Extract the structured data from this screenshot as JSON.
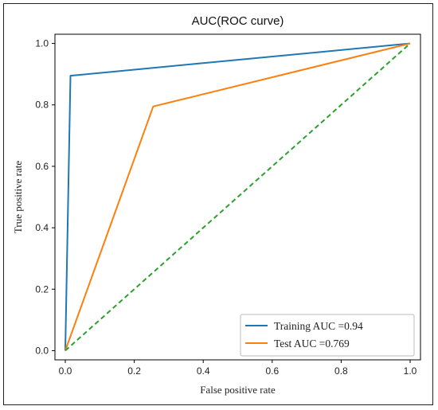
{
  "chart_data": {
    "type": "line",
    "title": "AUC(ROC curve)",
    "xlabel": "False positive rate",
    "ylabel": "True positive rate",
    "xlim": [
      -0.03,
      1.03
    ],
    "ylim": [
      -0.03,
      1.03
    ],
    "xticks": [
      0.0,
      0.2,
      0.4,
      0.6,
      0.8,
      1.0
    ],
    "yticks": [
      0.0,
      0.2,
      0.4,
      0.6,
      0.8,
      1.0
    ],
    "xtick_labels": [
      "0.0",
      "0.2",
      "0.4",
      "0.6",
      "0.8",
      "1.0"
    ],
    "ytick_labels": [
      "0.0",
      "0.2",
      "0.4",
      "0.6",
      "0.8",
      "1.0"
    ],
    "grid": false,
    "legend_position": "bottom-right",
    "series": [
      {
        "name": "Training AUC  =0.94",
        "color": "#1f77b4",
        "style": "solid",
        "x": [
          0.0,
          0.015,
          1.0
        ],
        "y": [
          0.0,
          0.895,
          1.0
        ]
      },
      {
        "name": "Test AUC  =0.769",
        "color": "#ff7f0e",
        "style": "solid",
        "x": [
          0.0,
          0.255,
          1.0
        ],
        "y": [
          0.0,
          0.795,
          1.0
        ]
      },
      {
        "name": "",
        "color": "#2ca02c",
        "style": "dashed",
        "x": [
          0.0,
          1.0
        ],
        "y": [
          0.0,
          1.0
        ]
      }
    ]
  }
}
